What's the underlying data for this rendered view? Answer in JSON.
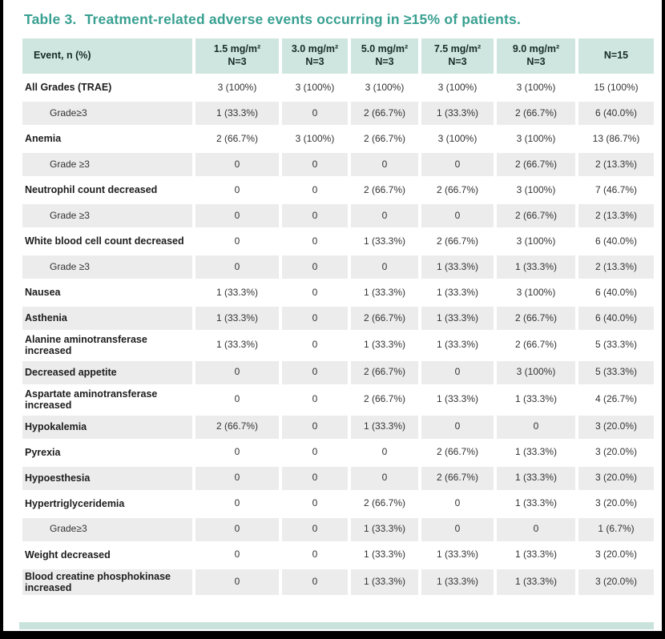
{
  "title": "Table 3.  Treatment-related adverse events occurring in ≥15% of patients.",
  "colors": {
    "accent_teal": "#38a091",
    "header_bg": "#cfe6e0",
    "row_gray": "#ececec",
    "bottom_bar_teal": "#c9e2dc",
    "frame_black": "#000000"
  },
  "table": {
    "header": {
      "event_label": "Event, n (%)",
      "columns": [
        {
          "dose": "1.5 mg/m²",
          "n": "N=3"
        },
        {
          "dose": "3.0 mg/m²",
          "n": "N=3"
        },
        {
          "dose": "5.0 mg/m²",
          "n": "N=3"
        },
        {
          "dose": "7.5 mg/m²",
          "n": "N=3"
        },
        {
          "dose": "9.0 mg/m²",
          "n": "N=3"
        },
        {
          "dose": "",
          "n": "N=15"
        }
      ]
    },
    "rows": [
      {
        "event": "All Grades (TRAE)",
        "sub": false,
        "values": [
          "3 (100%)",
          "3 (100%)",
          "3 (100%)",
          "3 (100%)",
          "3 (100%)",
          "15 (100%)"
        ]
      },
      {
        "event": "Grade≥3",
        "sub": true,
        "values": [
          "1 (33.3%)",
          "0",
          "2 (66.7%)",
          "1 (33.3%)",
          "2 (66.7%)",
          "6 (40.0%)"
        ]
      },
      {
        "event": "Anemia",
        "sub": false,
        "values": [
          "2 (66.7%)",
          "3 (100%)",
          "2 (66.7%)",
          "3 (100%)",
          "3 (100%)",
          "13 (86.7%)"
        ]
      },
      {
        "event": "Grade ≥3",
        "sub": true,
        "values": [
          "0",
          "0",
          "0",
          "0",
          "2 (66.7%)",
          "2 (13.3%)"
        ]
      },
      {
        "event": "Neutrophil count decreased",
        "sub": false,
        "values": [
          "0",
          "0",
          "2 (66.7%)",
          "2 (66.7%)",
          "3 (100%)",
          "7 (46.7%)"
        ]
      },
      {
        "event": "Grade ≥3",
        "sub": true,
        "values": [
          "0",
          "0",
          "0",
          "0",
          "2 (66.7%)",
          "2 (13.3%)"
        ]
      },
      {
        "event": "White blood cell count decreased",
        "sub": false,
        "values": [
          "0",
          "0",
          "1 (33.3%)",
          "2 (66.7%)",
          "3 (100%)",
          "6 (40.0%)"
        ]
      },
      {
        "event": "Grade ≥3",
        "sub": true,
        "values": [
          "0",
          "0",
          "0",
          "1 (33.3%)",
          "1 (33.3%)",
          "2 (13.3%)"
        ]
      },
      {
        "event": "Nausea",
        "sub": false,
        "values": [
          "1 (33.3%)",
          "0",
          "1 (33.3%)",
          "1 (33.3%)",
          "3 (100%)",
          "6 (40.0%)"
        ]
      },
      {
        "event": "Asthenia",
        "sub": false,
        "values": [
          "1 (33.3%)",
          "0",
          "2 (66.7%)",
          "1 (33.3%)",
          "2 (66.7%)",
          "6 (40.0%)"
        ]
      },
      {
        "event": "Alanine aminotransferase increased",
        "sub": false,
        "values": [
          "1 (33.3%)",
          "0",
          "1 (33.3%)",
          "1 (33.3%)",
          "2 (66.7%)",
          "5 (33.3%)"
        ]
      },
      {
        "event": "Decreased appetite",
        "sub": false,
        "values": [
          "0",
          "0",
          "2 (66.7%)",
          "0",
          "3 (100%)",
          "5 (33.3%)"
        ]
      },
      {
        "event": "Aspartate aminotransferase increased",
        "sub": false,
        "values": [
          "0",
          "0",
          "2 (66.7%)",
          "1 (33.3%)",
          "1 (33.3%)",
          "4 (26.7%)"
        ]
      },
      {
        "event": "Hypokalemia",
        "sub": false,
        "values": [
          "2 (66.7%)",
          "0",
          "1 (33.3%)",
          "0",
          "0",
          "3 (20.0%)"
        ]
      },
      {
        "event": "Pyrexia",
        "sub": false,
        "values": [
          "0",
          "0",
          "0",
          "2 (66.7%)",
          "1 (33.3%)",
          "3 (20.0%)"
        ]
      },
      {
        "event": "Hypoesthesia",
        "sub": false,
        "values": [
          "0",
          "0",
          "0",
          "2 (66.7%)",
          "1 (33.3%)",
          "3 (20.0%)"
        ]
      },
      {
        "event": "Hypertriglyceridemia",
        "sub": false,
        "values": [
          "0",
          "0",
          "2 (66.7%)",
          "0",
          "1 (33.3%)",
          "3 (20.0%)"
        ]
      },
      {
        "event": "Grade≥3",
        "sub": true,
        "values": [
          "0",
          "0",
          "1 (33.3%)",
          "0",
          "0",
          "1 (6.7%)"
        ]
      },
      {
        "event": "Weight decreased",
        "sub": false,
        "values": [
          "0",
          "0",
          "1 (33.3%)",
          "1 (33.3%)",
          "1 (33.3%)",
          "3 (20.0%)"
        ]
      },
      {
        "event": "Blood creatine phosphokinase increased",
        "sub": false,
        "values": [
          "0",
          "0",
          "1 (33.3%)",
          "1 (33.3%)",
          "1 (33.3%)",
          "3 (20.0%)"
        ]
      }
    ]
  }
}
